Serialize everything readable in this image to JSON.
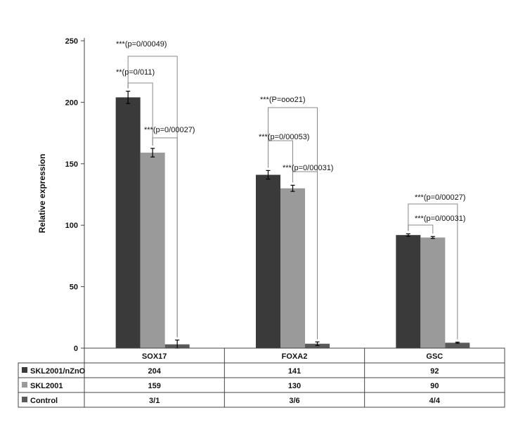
{
  "chart_data": {
    "type": "bar",
    "ylabel": "Relative expression",
    "ylim": [
      0,
      250
    ],
    "yticks": [
      0,
      50,
      100,
      150,
      200,
      250
    ],
    "grid": false,
    "categories": [
      "SOX17",
      "FOXA2",
      "GSC"
    ],
    "series": [
      {
        "name": "SKL2001/nZnO",
        "values": [
          204,
          141,
          92
        ],
        "errors": [
          5,
          3.5,
          1
        ],
        "color": "#3a3a3a"
      },
      {
        "name": "SKL2001",
        "values": [
          159,
          130,
          90
        ],
        "errors": [
          3.5,
          2.5,
          0.8
        ],
        "color": "#9a9a9a"
      },
      {
        "name": "Control",
        "values": [
          3.1,
          3.6,
          4.4
        ],
        "errors": [
          3.5,
          1.5,
          0.5
        ],
        "color": "#5a5a5a"
      }
    ],
    "table": {
      "rows": [
        {
          "label": "SKL2001/nZnO",
          "cells": [
            "204",
            "141",
            "92"
          ]
        },
        {
          "label": "SKL2001",
          "cells": [
            "159",
            "130",
            "90"
          ]
        },
        {
          "label": "Control",
          "cells": [
            "3/1",
            "3/6",
            "4/4"
          ]
        }
      ]
    },
    "annotations": [
      {
        "text": "***(p=0/00049)",
        "category": 0
      },
      {
        "text": "**(p=0/011)",
        "category": 0
      },
      {
        "text": "***(p=0/00027)",
        "category": 0
      },
      {
        "text": "***(P=ooo21)",
        "category": 1
      },
      {
        "text": "***(p=0/00053)",
        "category": 1
      },
      {
        "text": "***(p=0/00031)",
        "category": 1
      },
      {
        "text": "***(p=0/00027)",
        "category": 2
      },
      {
        "text": "***(p=0/00031)",
        "category": 2
      }
    ]
  }
}
